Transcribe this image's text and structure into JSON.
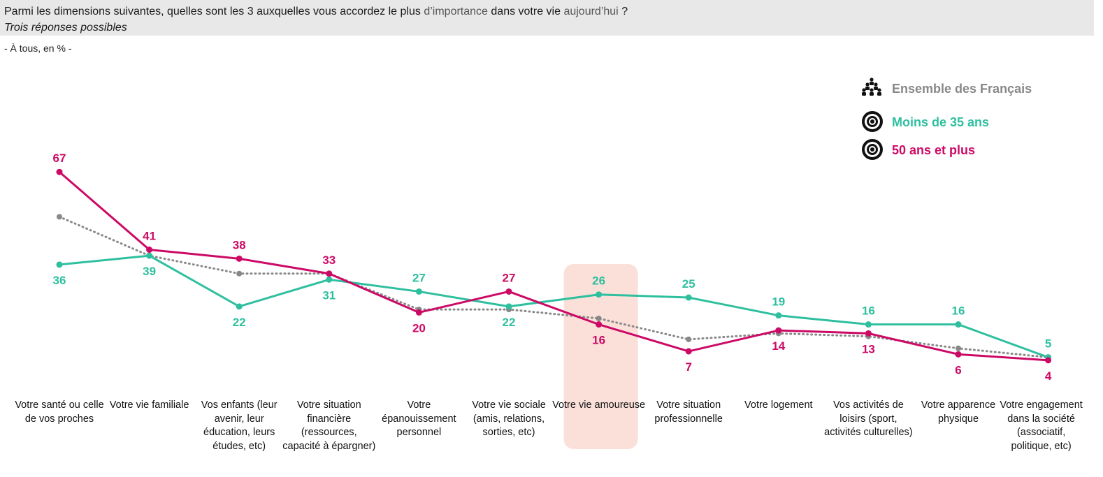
{
  "header": {
    "question_a": "Parmi les dimensions suivantes, quelles sont les 3 auxquelles vous accordez le plus",
    "question_b": "d’importance",
    "question_c": "dans votre vie",
    "question_d": "aujourd’hui",
    "question_e": "?",
    "instruction": "Trois réponses possibles",
    "base": "- À tous, en % -"
  },
  "colors": {
    "ensemble": "#888888",
    "moins35": "#2ebf9f",
    "plus50": "#cc0a66",
    "highlight": "#fbe0d9"
  },
  "chart_data": {
    "type": "line",
    "categories": [
      "Votre santé ou celle de vos proches",
      "Votre vie familiale",
      "Vos enfants (leur avenir, leur éducation, leurs études, etc)",
      "Votre situation financière (ressources, capacité à épargner)",
      "Votre épanouissement personnel",
      "Votre vie sociale (amis, relations, sorties, etc)",
      "Votre vie amoureuse",
      "Votre situation professionnelle",
      "Votre logement",
      "Vos activités de loisirs (sport, activités culturelles)",
      "Votre apparence physique",
      "Votre engagement dans la société (associatif, politique, etc)"
    ],
    "series": [
      {
        "name": "Ensemble des Français",
        "style": "dotted",
        "icon": "people-group-icon",
        "values": [
          52,
          39,
          33,
          33,
          21,
          21,
          18,
          11,
          13,
          12,
          8,
          5
        ],
        "labels_shown": false
      },
      {
        "name": "Moins de 35 ans",
        "style": "solid",
        "icon": "target-icon",
        "values": [
          36,
          39,
          22,
          31,
          27,
          22,
          26,
          25,
          19,
          16,
          16,
          5
        ],
        "labels_shown": true
      },
      {
        "name": "50 ans et plus",
        "style": "solid",
        "icon": "target-icon",
        "values": [
          67,
          41,
          38,
          33,
          20,
          27,
          16,
          7,
          14,
          13,
          6,
          4
        ],
        "labels_shown": true
      }
    ],
    "highlighted_category": "Votre vie amoureuse",
    "ylim": [
      0,
      70
    ],
    "grid": false,
    "legend": "top-right",
    "xlabel": "",
    "ylabel": ""
  }
}
